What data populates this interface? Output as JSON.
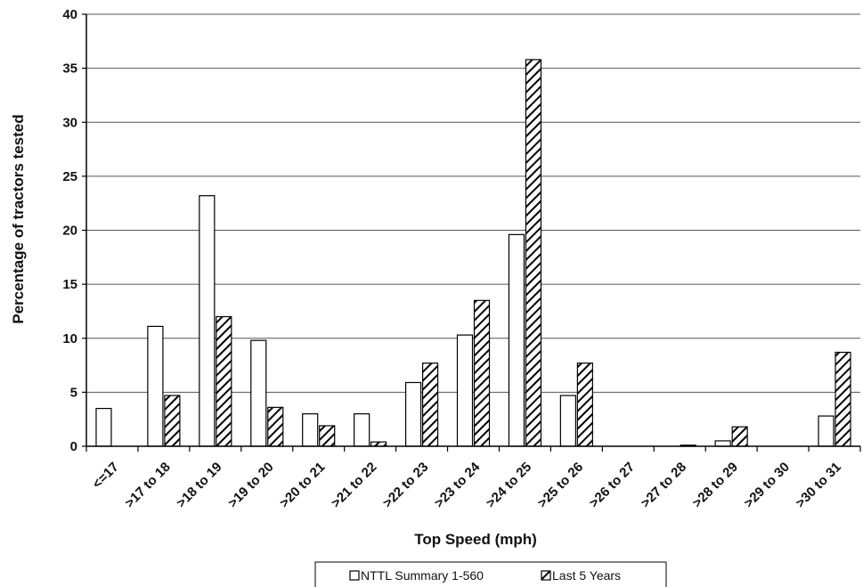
{
  "chart_data": {
    "type": "bar",
    "xlabel": "Top Speed (mph)",
    "ylabel": "Percentage of tractors tested",
    "ylim": [
      0,
      40
    ],
    "yticks": [
      0,
      5,
      10,
      15,
      20,
      25,
      30,
      35,
      40
    ],
    "grid": true,
    "legend_position": "bottom-center",
    "categories": [
      "<=17",
      ">17 to 18",
      ">18 to 19",
      ">19 to 20",
      ">20 to 21",
      ">21 to 22",
      ">22 to 23",
      ">23 to 24",
      ">24 to 25",
      ">25 to 26",
      ">26 to 27",
      ">27 to 28",
      ">28 to 29",
      ">29 to 30",
      ">30 to 31"
    ],
    "series": [
      {
        "name": "NTTL Summary 1-560",
        "fill": "white",
        "values": [
          3.5,
          11.1,
          23.2,
          9.8,
          3.0,
          3.0,
          5.9,
          10.3,
          19.6,
          4.7,
          0,
          0,
          0.5,
          0,
          2.8
        ]
      },
      {
        "name": "Last 5 Years",
        "fill": "hatched",
        "values": [
          0,
          4.7,
          12.0,
          3.6,
          1.9,
          0.4,
          7.7,
          13.5,
          35.8,
          7.7,
          0,
          0.1,
          1.8,
          0,
          8.7
        ]
      }
    ]
  }
}
